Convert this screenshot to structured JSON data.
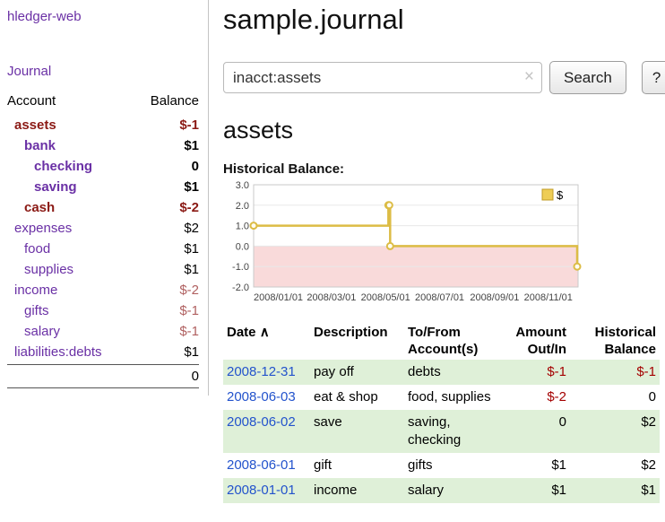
{
  "sidebar": {
    "app_title": "hledger-web",
    "nav_journal": "Journal",
    "table_headers": {
      "account": "Account",
      "balance": "Balance"
    },
    "accounts": [
      {
        "name": "assets",
        "depth": 1,
        "balance": "$-1",
        "bold": true
      },
      {
        "name": "bank",
        "depth": 2,
        "balance": "$1",
        "bold": true
      },
      {
        "name": "checking",
        "depth": 3,
        "balance": "0",
        "bold": true
      },
      {
        "name": "saving",
        "depth": 3,
        "balance": "$1",
        "bold": true
      },
      {
        "name": "cash",
        "depth": 2,
        "balance": "$-2",
        "bold": true
      },
      {
        "name": "expenses",
        "depth": 1,
        "balance": "$2",
        "bold": false
      },
      {
        "name": "food",
        "depth": 2,
        "balance": "$1",
        "bold": false
      },
      {
        "name": "supplies",
        "depth": 2,
        "balance": "$1",
        "bold": false
      },
      {
        "name": "income",
        "depth": 1,
        "balance": "$-2",
        "bold": false
      },
      {
        "name": "gifts",
        "depth": 2,
        "balance": "$-1",
        "bold": false
      },
      {
        "name": "salary",
        "depth": 2,
        "balance": "$-1",
        "bold": false
      },
      {
        "name": "liabilities:debts",
        "depth": 1,
        "balance": "$1",
        "bold": false
      }
    ],
    "total": "0"
  },
  "main": {
    "title": "sample.journal",
    "search": {
      "value": "inacct:assets",
      "clear_icon": "×",
      "search_button": "Search",
      "help_button": "?"
    },
    "account_heading": "assets",
    "chart_title": "Historical Balance:",
    "register": {
      "headers": {
        "date": "Date",
        "sort_indicator": "∧",
        "description": "Description",
        "accounts": "To/From Account(s)",
        "amount": "Amount Out/In",
        "balance": "Historical Balance"
      },
      "rows": [
        {
          "date": "2008-12-31",
          "description": "pay off",
          "accounts": "debts",
          "amount": "$-1",
          "balance": "$-1"
        },
        {
          "date": "2008-06-03",
          "description": "eat & shop",
          "accounts": "food, supplies",
          "amount": "$-2",
          "balance": "0"
        },
        {
          "date": "2008-06-02",
          "description": "save",
          "accounts": "saving,\nchecking",
          "amount": "0",
          "balance": "$2"
        },
        {
          "date": "2008-06-01",
          "description": "gift",
          "accounts": "gifts",
          "amount": "$1",
          "balance": "$2"
        },
        {
          "date": "2008-01-01",
          "description": "income",
          "accounts": "salary",
          "amount": "$1",
          "balance": "$1"
        }
      ]
    }
  },
  "chart_data": {
    "type": "line",
    "title": "Historical Balance",
    "step": true,
    "legend": "$",
    "legend_position": "top-right",
    "xlim": [
      "2008-01-01",
      "2009-01-01"
    ],
    "ylim": [
      -2,
      3
    ],
    "yticks": [
      3,
      2,
      1,
      0,
      -1,
      -2
    ],
    "xticks": [
      {
        "label": "2008/01/01",
        "date": "2008-01-01"
      },
      {
        "label": "2008/03/01",
        "date": "2008-03-01"
      },
      {
        "label": "2008/05/01",
        "date": "2008-05-01"
      },
      {
        "label": "2008/07/01",
        "date": "2008-07-01"
      },
      {
        "label": "2008/09/01",
        "date": "2008-09-01"
      },
      {
        "label": "2008/11/01",
        "date": "2008-11-01"
      }
    ],
    "series": [
      {
        "name": "$",
        "points": [
          {
            "x": "2008-01-01",
            "y": 1
          },
          {
            "x": "2008-06-01",
            "y": 2
          },
          {
            "x": "2008-06-02",
            "y": 2
          },
          {
            "x": "2008-06-03",
            "y": 0
          },
          {
            "x": "2008-12-31",
            "y": -1
          }
        ]
      }
    ],
    "colors": {
      "line": "#dcbc45",
      "marker_fill": "#fffdf2",
      "negative_region": "#f9dada",
      "grid": "#e8e8e8",
      "border": "#c9c9c9",
      "legend_fill": "#eecd55",
      "legend_border": "#c09c28"
    }
  }
}
